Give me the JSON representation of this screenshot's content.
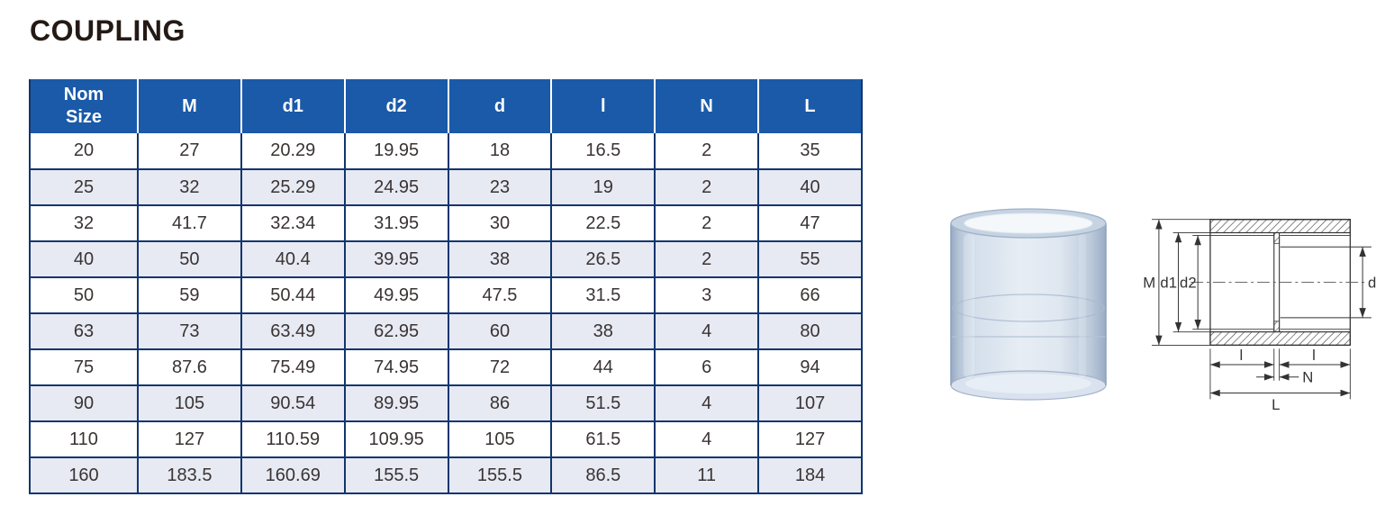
{
  "page": {
    "title": "COUPLING"
  },
  "colors": {
    "header_bg": "#1a5aa8",
    "header_text": "#ffffff",
    "alt_row_bg": "#e7eaf3",
    "grid_border": "#12356e",
    "cell_text": "#3a3333",
    "title_text": "#241a15"
  },
  "table": {
    "headers": [
      "Nom Size",
      "M",
      "d1",
      "d2",
      "d",
      "l",
      "N",
      "L"
    ],
    "rows": [
      [
        "20",
        "27",
        "20.29",
        "19.95",
        "18",
        "16.5",
        "2",
        "35"
      ],
      [
        "25",
        "32",
        "25.29",
        "24.95",
        "23",
        "19",
        "2",
        "40"
      ],
      [
        "32",
        "41.7",
        "32.34",
        "31.95",
        "30",
        "22.5",
        "2",
        "47"
      ],
      [
        "40",
        "50",
        "40.4",
        "39.95",
        "38",
        "26.5",
        "2",
        "55"
      ],
      [
        "50",
        "59",
        "50.44",
        "49.95",
        "47.5",
        "31.5",
        "3",
        "66"
      ],
      [
        "63",
        "73",
        "63.49",
        "62.95",
        "60",
        "38",
        "4",
        "80"
      ],
      [
        "75",
        "87.6",
        "75.49",
        "74.95",
        "72",
        "44",
        "6",
        "94"
      ],
      [
        "90",
        "105",
        "90.54",
        "89.95",
        "86",
        "51.5",
        "4",
        "107"
      ],
      [
        "110",
        "127",
        "110.59",
        "109.95",
        "105",
        "61.5",
        "4",
        "127"
      ],
      [
        "160",
        "183.5",
        "160.69",
        "155.5",
        "155.5",
        "86.5",
        "11",
        "184"
      ]
    ]
  },
  "diagram": {
    "labels": {
      "m": "M",
      "d1": "d1",
      "d2": "d2",
      "d": "d",
      "l_left": "l",
      "l_right": "l",
      "n": "N",
      "l_total": "L"
    }
  }
}
